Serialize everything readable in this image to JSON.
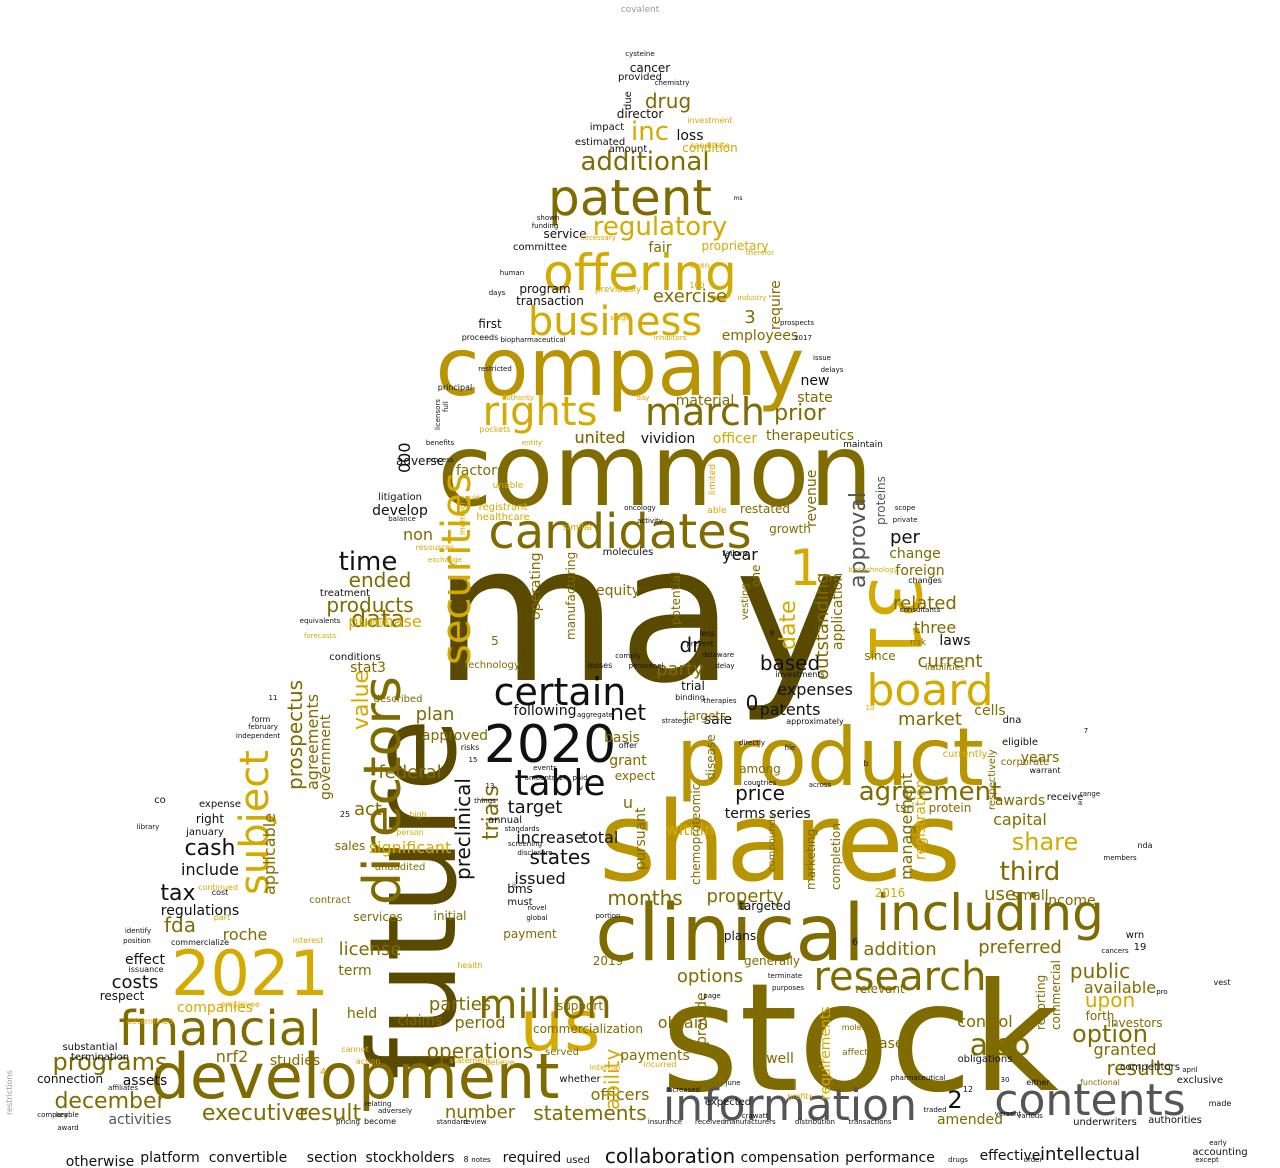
{
  "palette": {
    "dark_olive": "#5a4a00",
    "olive": "#7f6b00",
    "gold": "#b89400",
    "bright_gold": "#d4aa00",
    "yellow": "#e6c200",
    "black": "#111111",
    "gray": "#555555",
    "light_gray": "#999999"
  },
  "words": [
    {
      "text": "covalent"
    },
    {
      "text": "stock"
    },
    {
      "text": "may"
    },
    {
      "text": "future"
    },
    {
      "text": "shares"
    },
    {
      "text": "common"
    },
    {
      "text": "company"
    },
    {
      "text": "product"
    },
    {
      "text": "clinical"
    },
    {
      "text": "development"
    },
    {
      "text": "2021"
    },
    {
      "text": "financial"
    },
    {
      "text": "us"
    },
    {
      "text": "including"
    },
    {
      "text": "information"
    },
    {
      "text": "contents"
    },
    {
      "text": "offering"
    },
    {
      "text": "patent"
    },
    {
      "text": "candidates"
    },
    {
      "text": "business"
    },
    {
      "text": "board"
    },
    {
      "text": "31"
    },
    {
      "text": "directors"
    },
    {
      "text": "2020"
    },
    {
      "text": "research"
    },
    {
      "text": "certain"
    },
    {
      "text": "table"
    },
    {
      "text": "million"
    },
    {
      "text": "securities"
    },
    {
      "text": "rights"
    },
    {
      "text": "march"
    },
    {
      "text": "subject"
    },
    {
      "text": "regulatory"
    },
    {
      "text": "additional"
    },
    {
      "text": "agreement"
    },
    {
      "text": "also"
    },
    {
      "text": "programs"
    },
    {
      "text": "december"
    },
    {
      "text": "executive"
    },
    {
      "text": "result"
    },
    {
      "text": "statements"
    },
    {
      "text": "number"
    },
    {
      "text": "operations"
    },
    {
      "text": "collaboration"
    },
    {
      "text": "intellectual"
    },
    {
      "text": "otherwise"
    },
    {
      "text": "platform"
    },
    {
      "text": "convertible"
    },
    {
      "text": "section"
    },
    {
      "text": "stockholders"
    },
    {
      "text": "required"
    },
    {
      "text": "compensation"
    },
    {
      "text": "performance"
    },
    {
      "text": "effective"
    },
    {
      "text": "drug"
    },
    {
      "text": "inc"
    },
    {
      "text": "cancer"
    },
    {
      "text": "provided"
    },
    {
      "text": "director"
    },
    {
      "text": "loss"
    },
    {
      "text": "exercise"
    },
    {
      "text": "employees"
    },
    {
      "text": "prior"
    },
    {
      "text": "united"
    },
    {
      "text": "vividion"
    },
    {
      "text": "officer"
    },
    {
      "text": "therapeutics"
    },
    {
      "text": "approval"
    },
    {
      "text": "time"
    },
    {
      "text": "data"
    },
    {
      "text": "ended"
    },
    {
      "text": "products"
    },
    {
      "text": "purchase"
    },
    {
      "text": "value"
    },
    {
      "text": "prospectus"
    },
    {
      "text": "agreements"
    },
    {
      "text": "applicable"
    },
    {
      "text": "federal"
    },
    {
      "text": "act"
    },
    {
      "text": "cash"
    },
    {
      "text": "tax"
    },
    {
      "text": "fda"
    },
    {
      "text": "costs"
    },
    {
      "text": "roche"
    },
    {
      "text": "nrf2"
    },
    {
      "text": "studies"
    },
    {
      "text": "assets"
    },
    {
      "text": "activities"
    },
    {
      "text": "officers"
    },
    {
      "text": "license"
    },
    {
      "text": "parties"
    },
    {
      "text": "period"
    },
    {
      "text": "trials"
    },
    {
      "text": "preclinical"
    },
    {
      "text": "states"
    },
    {
      "text": "issued"
    },
    {
      "text": "target"
    },
    {
      "text": "price"
    },
    {
      "text": "terms"
    },
    {
      "text": "series"
    },
    {
      "text": "months"
    },
    {
      "text": "property"
    },
    {
      "text": "options"
    },
    {
      "text": "third"
    },
    {
      "text": "share"
    },
    {
      "text": "use"
    },
    {
      "text": "public"
    },
    {
      "text": "option"
    },
    {
      "text": "upon"
    },
    {
      "text": "results"
    },
    {
      "text": "expenses"
    },
    {
      "text": "based"
    },
    {
      "text": "patents"
    },
    {
      "text": "market"
    },
    {
      "text": "current"
    },
    {
      "text": "related"
    },
    {
      "text": "outstanding"
    },
    {
      "text": "date"
    },
    {
      "text": "per"
    },
    {
      "text": "year"
    },
    {
      "text": "dr"
    },
    {
      "text": "party"
    },
    {
      "text": "net"
    },
    {
      "text": "plan"
    },
    {
      "text": "following"
    },
    {
      "text": "000"
    },
    {
      "text": "adverse"
    },
    {
      "text": "develop"
    },
    {
      "text": "non"
    },
    {
      "text": "1"
    },
    {
      "text": "3"
    },
    {
      "text": "0"
    },
    {
      "text": "2"
    },
    {
      "text": "addition"
    },
    {
      "text": "preferred"
    },
    {
      "text": "available"
    },
    {
      "text": "granted"
    },
    {
      "text": "management"
    },
    {
      "text": "registration"
    },
    {
      "text": "capital"
    },
    {
      "text": "small"
    },
    {
      "text": "income"
    },
    {
      "text": "control"
    },
    {
      "text": "lease"
    },
    {
      "text": "amended"
    },
    {
      "text": "operating"
    },
    {
      "text": "ability"
    },
    {
      "text": "payments"
    },
    {
      "text": "obtain"
    },
    {
      "text": "provide"
    },
    {
      "text": "within"
    },
    {
      "text": "increase"
    },
    {
      "text": "total"
    },
    {
      "text": "significant"
    },
    {
      "text": "government"
    },
    {
      "text": "include"
    },
    {
      "text": "regulations"
    },
    {
      "text": "companies"
    },
    {
      "text": "claims"
    },
    {
      "text": "held"
    },
    {
      "text": "term"
    },
    {
      "text": "effect"
    },
    {
      "text": "respect"
    },
    {
      "text": "approved"
    },
    {
      "text": "grant"
    },
    {
      "text": "basis"
    },
    {
      "text": "sale"
    },
    {
      "text": "well"
    },
    {
      "text": "cell"
    },
    {
      "text": "state"
    },
    {
      "text": "new"
    },
    {
      "text": "material"
    },
    {
      "text": "revenue"
    },
    {
      "text": "foreign"
    },
    {
      "text": "three"
    },
    {
      "text": "laws"
    },
    {
      "text": "since"
    },
    {
      "text": "cells"
    },
    {
      "text": "years"
    },
    {
      "text": "awards"
    },
    {
      "text": "proteins"
    },
    {
      "text": "change"
    },
    {
      "text": "program"
    },
    {
      "text": "transaction"
    },
    {
      "text": "fair"
    },
    {
      "text": "proprietary"
    },
    {
      "text": "service"
    },
    {
      "text": "committee"
    },
    {
      "text": "first"
    },
    {
      "text": "condition"
    },
    {
      "text": "amount"
    },
    {
      "text": "estimated"
    },
    {
      "text": "impact"
    },
    {
      "text": "due"
    },
    {
      "text": "require"
    },
    {
      "text": "united"
    },
    {
      "text": "factors"
    },
    {
      "text": "litigation"
    },
    {
      "text": "treatment"
    },
    {
      "text": "stat3"
    },
    {
      "text": "conditions"
    },
    {
      "text": "sales"
    },
    {
      "text": "right"
    },
    {
      "text": "january"
    },
    {
      "text": "expense"
    },
    {
      "text": "connection"
    },
    {
      "text": "substantial"
    },
    {
      "text": "termination"
    },
    {
      "text": "contract"
    },
    {
      "text": "services"
    },
    {
      "text": "initial"
    },
    {
      "text": "payment"
    },
    {
      "text": "must"
    },
    {
      "text": "support"
    },
    {
      "text": "expect"
    },
    {
      "text": "pursuant"
    },
    {
      "text": "annual"
    },
    {
      "text": "bms"
    },
    {
      "text": "expected"
    },
    {
      "text": "targeted"
    },
    {
      "text": "plans"
    },
    {
      "text": "generally"
    },
    {
      "text": "marketing"
    },
    {
      "text": "completion"
    },
    {
      "text": "application"
    },
    {
      "text": "requirements"
    },
    {
      "text": "relevant"
    },
    {
      "text": "2016"
    },
    {
      "text": "reporting"
    },
    {
      "text": "commercial"
    },
    {
      "text": "investors"
    },
    {
      "text": "forth"
    },
    {
      "text": "obligations"
    },
    {
      "text": "protein"
    },
    {
      "text": "respectively"
    },
    {
      "text": "corporate"
    },
    {
      "text": "eligible"
    },
    {
      "text": "currently"
    },
    {
      "text": "receive"
    },
    {
      "text": "exclusive"
    },
    {
      "text": "authorities"
    },
    {
      "text": "underwriters"
    },
    {
      "text": "competitors"
    },
    {
      "text": "accounting"
    },
    {
      "text": "restated"
    },
    {
      "text": "growth"
    },
    {
      "text": "equity"
    },
    {
      "text": "manufacturing"
    },
    {
      "text": "potential"
    },
    {
      "text": "molecules"
    },
    {
      "text": "disease"
    },
    {
      "text": "among"
    },
    {
      "text": "tsri"
    },
    {
      "text": "compounds"
    },
    {
      "text": "chemoproteomic"
    },
    {
      "text": "vesting"
    },
    {
      "text": "one"
    },
    {
      "text": "5"
    },
    {
      "text": "u"
    },
    {
      "text": "dna"
    },
    {
      "text": "wrn"
    },
    {
      "text": "19"
    },
    {
      "text": "co"
    },
    {
      "text": "vest"
    },
    {
      "text": "nda"
    },
    {
      "text": "restrictions"
    },
    {
      "text": "commercialization"
    },
    {
      "text": "served"
    },
    {
      "text": "whether"
    },
    {
      "text": "2019"
    },
    {
      "text": "technology"
    },
    {
      "text": "described"
    },
    {
      "text": "trial"
    },
    {
      "text": "targets"
    },
    {
      "text": "unaudited"
    },
    {
      "text": "proceeds"
    },
    {
      "text": "principal"
    },
    {
      "text": "human"
    },
    {
      "text": "days"
    },
    {
      "text": "shown"
    },
    {
      "text": "funding"
    },
    {
      "text": "identify"
    },
    {
      "text": "balance"
    },
    {
      "text": "scope"
    },
    {
      "text": "private"
    },
    {
      "text": "consultants"
    },
    {
      "text": "changes"
    },
    {
      "text": "maintain"
    },
    {
      "text": "issue"
    },
    {
      "text": "delays"
    },
    {
      "text": "prospects"
    },
    {
      "text": "2017"
    },
    {
      "text": "restricted"
    },
    {
      "text": "cysteine"
    },
    {
      "text": "chemistry"
    },
    {
      "text": "investment"
    },
    {
      "text": "candidate"
    },
    {
      "text": "ms"
    },
    {
      "text": "library"
    },
    {
      "text": "independent"
    },
    {
      "text": "award"
    },
    {
      "text": "key"
    },
    {
      "text": "comparable"
    },
    {
      "text": "made"
    },
    {
      "text": "april"
    },
    {
      "text": "either"
    },
    {
      "text": "drugs"
    },
    {
      "text": "order"
    },
    {
      "text": "except"
    },
    {
      "text": "notes"
    },
    {
      "text": "used"
    },
    {
      "text": "12"
    },
    {
      "text": "7"
    },
    {
      "text": "4"
    },
    {
      "text": "6"
    },
    {
      "text": "8"
    },
    {
      "text": "9"
    },
    {
      "text": "11"
    },
    {
      "text": "10"
    },
    {
      "text": "warrant"
    },
    {
      "text": "range"
    },
    {
      "text": "members"
    },
    {
      "text": "cancers"
    },
    {
      "text": "pro"
    },
    {
      "text": "early"
    },
    {
      "text": "versant"
    },
    {
      "text": "various"
    },
    {
      "text": "crawatt"
    },
    {
      "text": "june"
    },
    {
      "text": "increased"
    },
    {
      "text": "traded"
    },
    {
      "text": "pharmaceutical"
    },
    {
      "text": "distribution"
    },
    {
      "text": "transactions"
    },
    {
      "text": "manufacturers"
    },
    {
      "text": "insurance"
    },
    {
      "text": "received"
    },
    {
      "text": "review"
    },
    {
      "text": "standard"
    },
    {
      "text": "become"
    },
    {
      "text": "pricing"
    },
    {
      "text": "adversely"
    },
    {
      "text": "relating"
    },
    {
      "text": "affiliates"
    },
    {
      "text": "position"
    },
    {
      "text": "issuance"
    },
    {
      "text": "form"
    },
    {
      "text": "february"
    },
    {
      "text": "cost"
    },
    {
      "text": "continued"
    },
    {
      "text": "part"
    },
    {
      "text": "commercialize"
    },
    {
      "text": "employee"
    },
    {
      "text": "determined"
    },
    {
      "text": "interest"
    },
    {
      "text": "high"
    },
    {
      "text": "person"
    },
    {
      "text": "cannot"
    },
    {
      "text": "action"
    },
    {
      "text": "believe"
    },
    {
      "text": "statement"
    },
    {
      "text": "internal"
    },
    {
      "text": "incurred"
    },
    {
      "text": "profits"
    },
    {
      "text": "failure"
    },
    {
      "text": "prevent"
    },
    {
      "text": "comply"
    },
    {
      "text": "personnel"
    },
    {
      "text": "losses"
    },
    {
      "text": "binding"
    },
    {
      "text": "less"
    },
    {
      "text": "delaware"
    },
    {
      "text": "delay"
    },
    {
      "text": "investments"
    },
    {
      "text": "approximately"
    },
    {
      "text": "file"
    },
    {
      "text": "across"
    },
    {
      "text": "directly"
    },
    {
      "text": "countries"
    },
    {
      "text": "risk"
    },
    {
      "text": "liabilities"
    },
    {
      "text": "affect"
    },
    {
      "text": "molecule"
    },
    {
      "text": "functional"
    },
    {
      "text": "risks"
    },
    {
      "text": "offer"
    },
    {
      "text": "aggregate"
    },
    {
      "text": "strategic"
    },
    {
      "text": "therapies"
    },
    {
      "text": "things"
    },
    {
      "text": "standards"
    },
    {
      "text": "screening"
    },
    {
      "text": "global"
    },
    {
      "text": "novel"
    },
    {
      "text": "portion"
    },
    {
      "text": "page"
    },
    {
      "text": "purposes"
    },
    {
      "text": "terminate"
    },
    {
      "text": "health"
    },
    {
      "text": "benefits"
    },
    {
      "text": "process"
    },
    {
      "text": "full"
    },
    {
      "text": "licensors"
    },
    {
      "text": "pockets"
    },
    {
      "text": "registrant"
    },
    {
      "text": "healthcare"
    },
    {
      "text": "unable"
    },
    {
      "text": "oncology"
    },
    {
      "text": "activity"
    },
    {
      "text": "able"
    },
    {
      "text": "limited"
    },
    {
      "text": "biotechnology"
    },
    {
      "text": "entity"
    },
    {
      "text": "similar"
    },
    {
      "text": "equivalents"
    },
    {
      "text": "resources"
    },
    {
      "text": "exchange"
    },
    {
      "text": "member"
    },
    {
      "text": "previously"
    },
    {
      "text": "100"
    },
    {
      "text": "even"
    },
    {
      "text": "industry"
    },
    {
      "text": "stage"
    },
    {
      "text": "inhibitors"
    },
    {
      "text": "biopharmaceutical"
    },
    {
      "text": "authority"
    },
    {
      "text": "day"
    },
    {
      "text": "necessary"
    },
    {
      "text": "therefor"
    },
    {
      "text": "could"
    },
    {
      "text": "plaintiffs"
    },
    {
      "text": "forecasts"
    },
    {
      "text": "disclosure"
    },
    {
      "text": "events"
    },
    {
      "text": "iv"
    },
    {
      "text": "amounts"
    },
    {
      "text": "paid"
    },
    {
      "text": "ii"
    },
    {
      "text": "14"
    },
    {
      "text": "15"
    },
    {
      "text": "30"
    },
    {
      "text": "13"
    },
    {
      "text": "25"
    },
    {
      "text": "b"
    },
    {
      "text": "a"
    }
  ]
}
